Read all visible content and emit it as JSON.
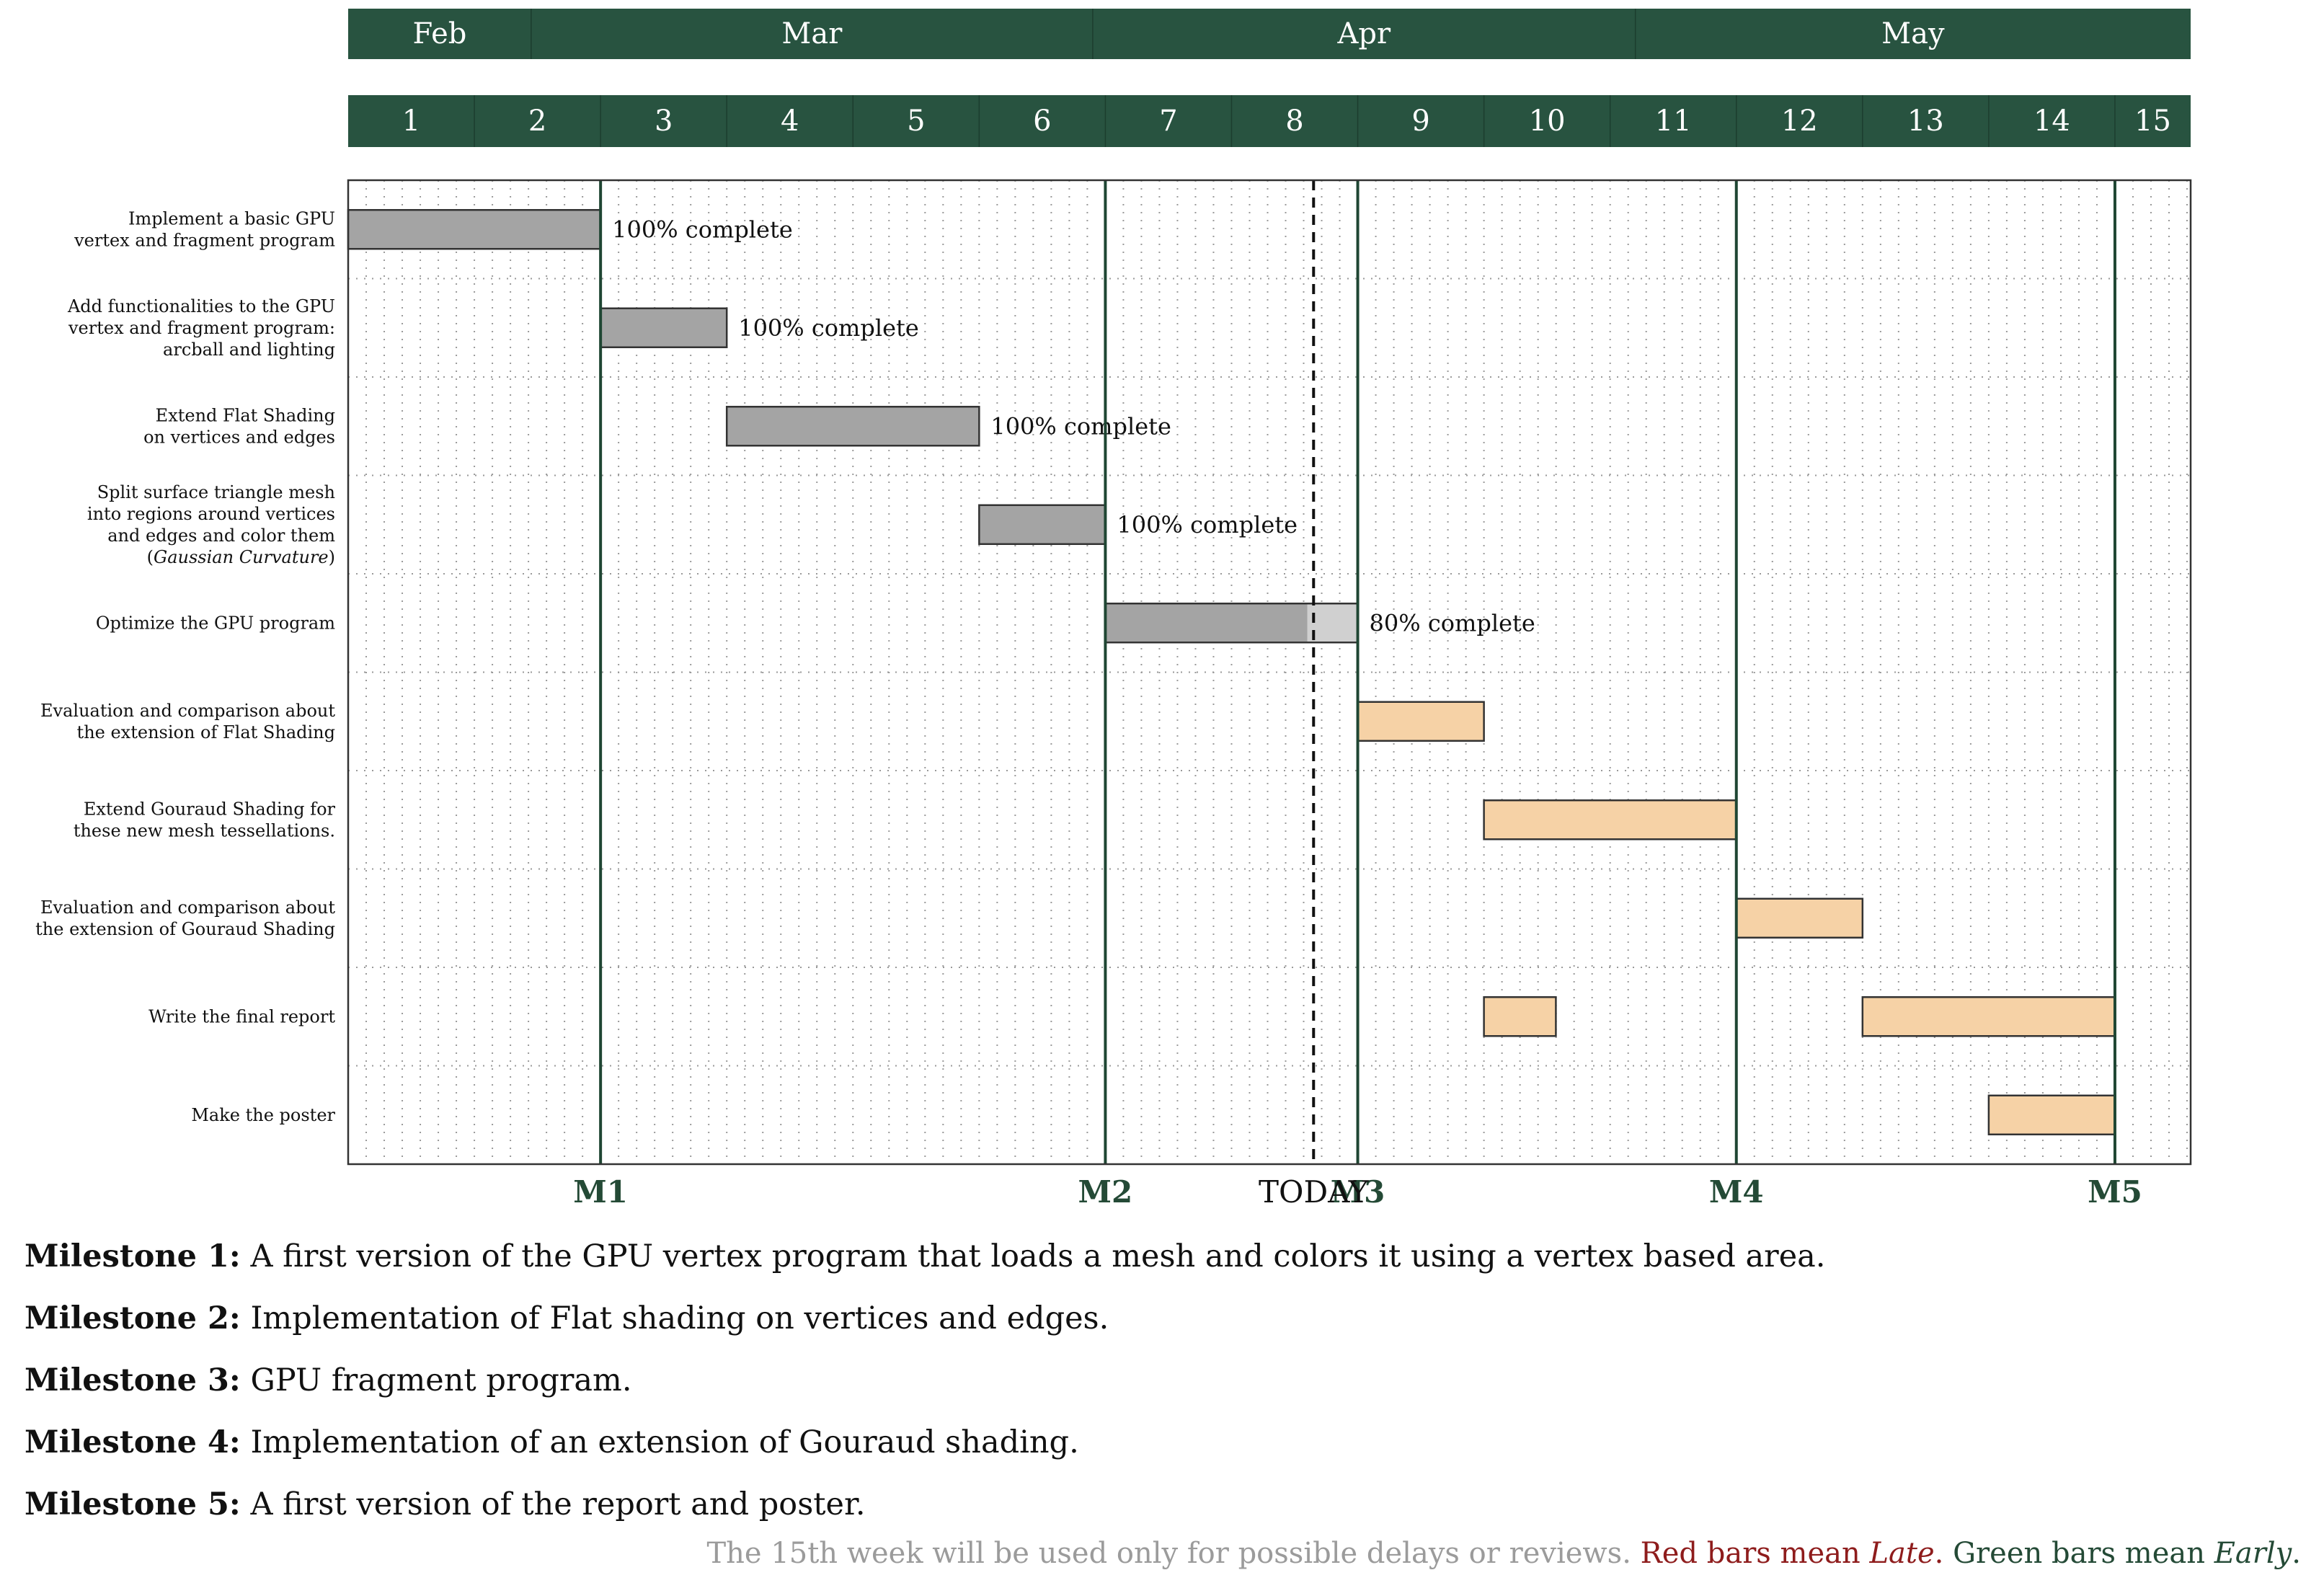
{
  "chart_data": {
    "type": "gantt",
    "x_unit": "week",
    "x_range": [
      1,
      15
    ],
    "months": [
      {
        "label": "Feb",
        "start": 1,
        "end": 2.45
      },
      {
        "label": "Mar",
        "start": 2.45,
        "end": 6.9
      },
      {
        "label": "Apr",
        "start": 6.9,
        "end": 11.2
      },
      {
        "label": "May",
        "start": 11.2,
        "end": 15.6
      }
    ],
    "weeks": [
      "1",
      "2",
      "3",
      "4",
      "5",
      "6",
      "7",
      "8",
      "9",
      "10",
      "11",
      "12",
      "13",
      "14",
      "15"
    ],
    "tasks": [
      {
        "label": [
          "Implement a basic GPU",
          "vertex and fragment program"
        ],
        "start": 1,
        "end": 3,
        "progress": 1.0,
        "progress_label": "100% complete",
        "status": "done"
      },
      {
        "label": [
          "Add functionalities to the GPU",
          "vertex and fragment program:",
          "arcball and lighting"
        ],
        "start": 3,
        "end": 4,
        "progress": 1.0,
        "progress_label": "100% complete",
        "status": "done"
      },
      {
        "label": [
          "Extend Flat Shading",
          "on vertices and edges"
        ],
        "start": 4,
        "end": 6,
        "progress": 1.0,
        "progress_label": "100% complete",
        "status": "done"
      },
      {
        "label": [
          "Split surface triangle mesh",
          "into regions around vertices",
          "and edges and color them",
          "(Gaussian Curvature)"
        ],
        "start": 6,
        "end": 7,
        "progress": 1.0,
        "progress_label": "100% complete",
        "status": "done"
      },
      {
        "label": [
          "Optimize the GPU program"
        ],
        "start": 7,
        "end": 9,
        "progress": 0.8,
        "progress_label": "80% complete",
        "status": "in-progress"
      },
      {
        "label": [
          "Evaluation and comparison about",
          "the extension of Flat Shading"
        ],
        "start": 9,
        "end": 10,
        "progress": 0,
        "progress_label": "",
        "status": "planned"
      },
      {
        "label": [
          "Extend Gouraud Shading for",
          "these new mesh tessellations."
        ],
        "start": 10,
        "end": 12,
        "progress": 0,
        "progress_label": "",
        "status": "planned"
      },
      {
        "label": [
          "Evaluation and comparison about",
          "the extension of Gouraud Shading"
        ],
        "start": 12,
        "end": 13,
        "progress": 0,
        "progress_label": "",
        "status": "planned"
      },
      {
        "label": [
          "Write the final report"
        ],
        "segments": [
          [
            10,
            10.57
          ],
          [
            13,
            15
          ]
        ],
        "progress": 0,
        "progress_label": "",
        "status": "planned"
      },
      {
        "label": [
          "Make the poster"
        ],
        "start": 14,
        "end": 15,
        "progress": 0,
        "progress_label": "",
        "status": "planned"
      }
    ],
    "milestones": [
      {
        "label": "M1",
        "x": 3
      },
      {
        "label": "M2",
        "x": 7
      },
      {
        "label": "M3",
        "x": 9
      },
      {
        "label": "M4",
        "x": 12
      },
      {
        "label": "M5",
        "x": 15
      }
    ],
    "today": {
      "label": "TODAY",
      "x": 8.65
    },
    "grid": true,
    "colors": {
      "header": "#285340",
      "milestone_line": "#1f4633",
      "done_bar": "#a4a4a4",
      "remaining_bar": "#d0d0d0",
      "planned_bar": "#f6d2a6",
      "bar_stroke": "#333333",
      "grid": "#9a9a9a"
    }
  },
  "legend": [
    {
      "title": "Milestone 1:",
      "text": "A first version of the GPU vertex program that loads a mesh and colors it using a vertex based area."
    },
    {
      "title": "Milestone 2:",
      "text": "Implementation of Flat shading on vertices and edges."
    },
    {
      "title": "Milestone 3:",
      "text": "GPU fragment program."
    },
    {
      "title": "Milestone 4:",
      "text": "Implementation of an extension of Gouraud shading."
    },
    {
      "title": "Milestone 5:",
      "text": "A first version of the report and poster."
    }
  ],
  "note": {
    "part1": "The 15th week will be used only for possible delays or reviews.",
    "part2": "Red bars mean",
    "part2_em": "Late",
    "part3": "Green bars mean",
    "part3_em": "Early"
  }
}
